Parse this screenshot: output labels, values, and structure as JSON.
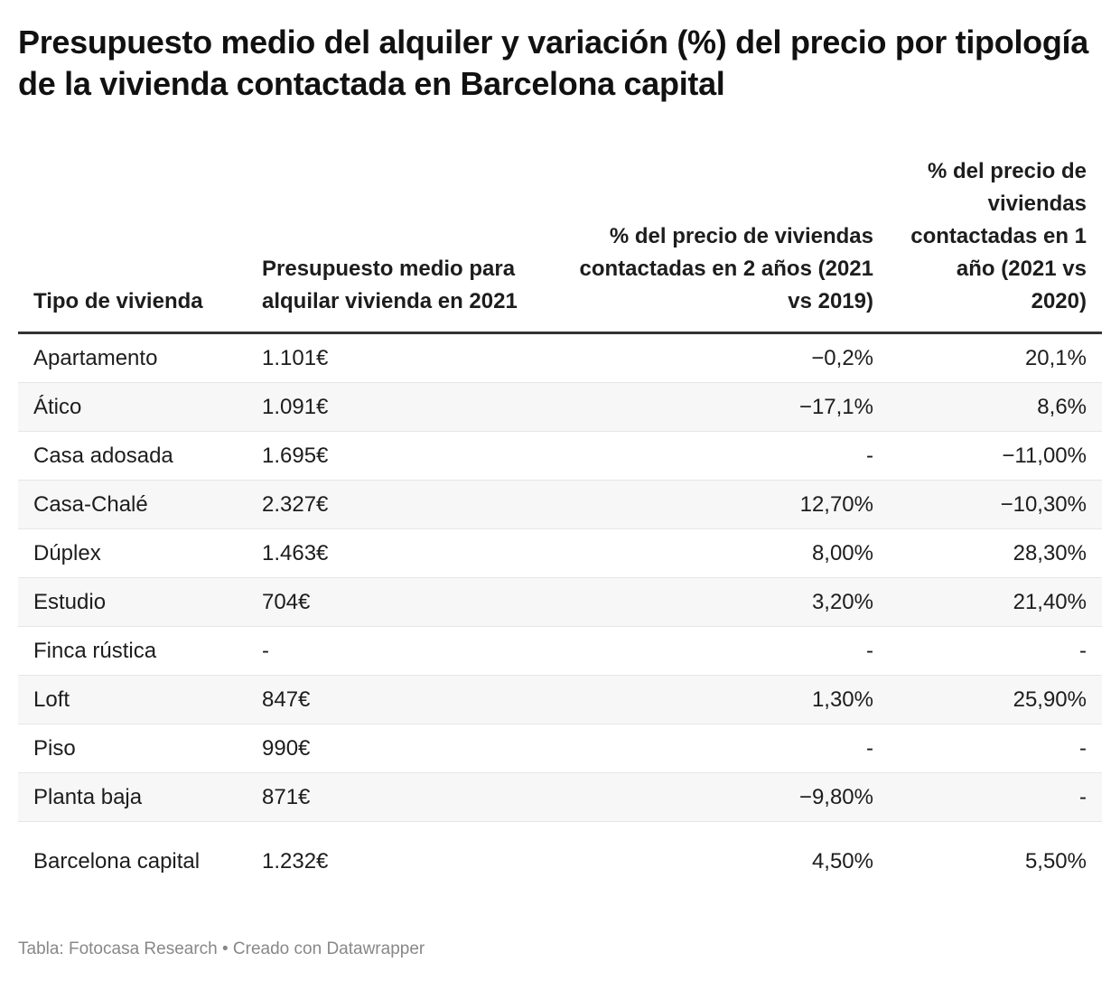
{
  "chart_data": {
    "type": "table",
    "title": "Presupuesto medio del alquiler y variación (%) del precio por tipología de la vivienda contactada en Barcelona capital",
    "columns": [
      "Tipo de vivienda",
      "Presupuesto medio para alquilar vivienda en 2021",
      "% del precio de viviendas contactadas en 2 años (2021 vs 2019)",
      "% del precio de viviendas contactadas en 1 año (2021 vs 2020)"
    ],
    "rows": [
      [
        "Apartamento",
        "1.101€",
        "−0,2%",
        "20,1%"
      ],
      [
        "Ático",
        "1.091€",
        "−17,1%",
        "8,6%"
      ],
      [
        "Casa adosada",
        "1.695€",
        "-",
        "−11,00%"
      ],
      [
        "Casa-Chalé",
        "2.327€",
        "12,70%",
        "−10,30%"
      ],
      [
        "Dúplex",
        "1.463€",
        "8,00%",
        "28,30%"
      ],
      [
        "Estudio",
        "704€",
        "3,20%",
        "21,40%"
      ],
      [
        "Finca rústica",
        "-",
        "-",
        "-"
      ],
      [
        "Loft",
        "847€",
        "1,30%",
        "25,90%"
      ],
      [
        "Piso",
        "990€",
        "-",
        "-"
      ],
      [
        "Planta baja",
        "871€",
        "−9,80%",
        "-"
      ],
      [
        "Barcelona capital",
        "1.232€",
        "4,50%",
        "5,50%"
      ]
    ],
    "footer": "Tabla: Fotocasa Research • Creado con Datawrapper"
  }
}
